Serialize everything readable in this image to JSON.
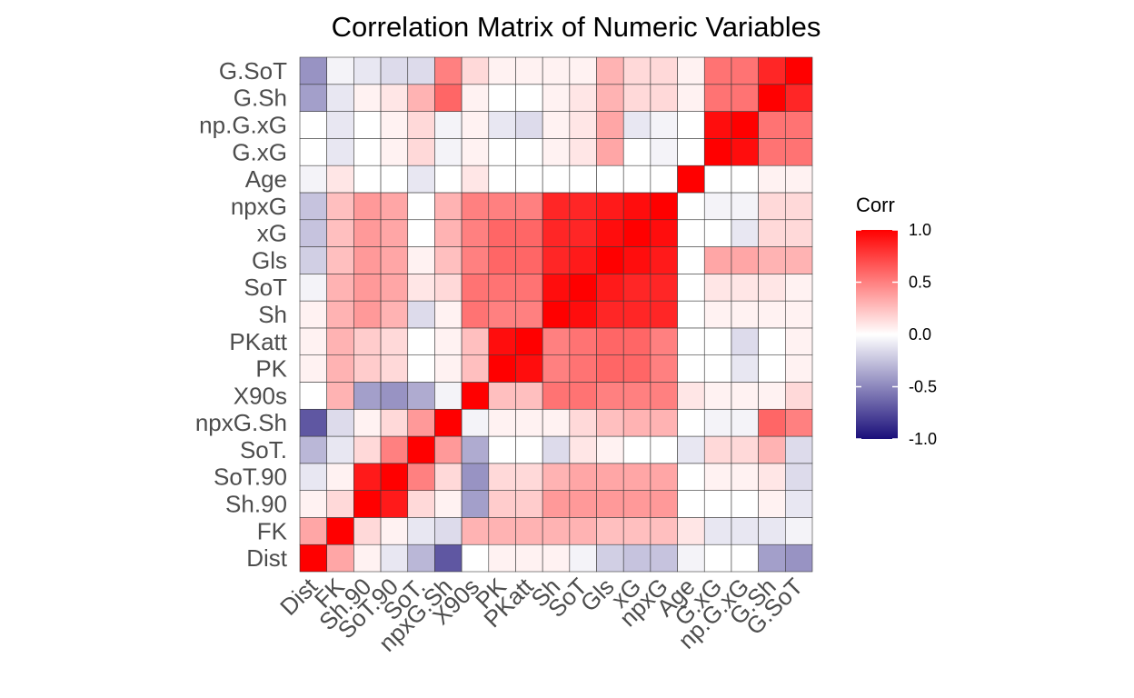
{
  "chart_data": {
    "type": "heatmap",
    "title": "Correlation Matrix of Numeric Variables",
    "variables": [
      "Dist",
      "FK",
      "Sh.90",
      "SoT.90",
      "SoT.",
      "npxG.Sh",
      "X90s",
      "PK",
      "PKatt",
      "Sh",
      "SoT",
      "Gls",
      "xG",
      "npxG",
      "Age",
      "G.xG",
      "np.G.xG",
      "G.Sh",
      "G.SoT"
    ],
    "x_tick_labels": [
      "Dist",
      "FK",
      "Sh.90",
      "SoT.90",
      "SoT.",
      "npxG.Sh",
      "X90s",
      "PK",
      "PKatt",
      "Sh",
      "SoT",
      "Gls",
      "xG",
      "npxG",
      "Age",
      "G.xG",
      "np.G.xG",
      "G.Sh",
      "G.SoT"
    ],
    "y_tick_labels": [
      "Dist",
      "FK",
      "Sh.90",
      "SoT.90",
      "SoT.",
      "npxG.Sh",
      "X90s",
      "PK",
      "PKatt",
      "Sh",
      "SoT",
      "Gls",
      "xG",
      "npxG",
      "Age",
      "G.xG",
      "np.G.xG",
      "G.Sh",
      "G.SoT"
    ],
    "matrix": [
      [
        1.0,
        0.35,
        0.05,
        -0.1,
        -0.3,
        -0.7,
        0.0,
        0.05,
        0.05,
        0.05,
        -0.05,
        -0.2,
        -0.25,
        -0.25,
        -0.05,
        0.0,
        0.0,
        -0.4,
        -0.45
      ],
      [
        0.35,
        1.0,
        0.15,
        0.05,
        -0.1,
        -0.15,
        0.3,
        0.3,
        0.3,
        0.3,
        0.3,
        0.25,
        0.25,
        0.25,
        0.1,
        -0.1,
        -0.1,
        -0.1,
        -0.05
      ],
      [
        0.05,
        0.15,
        1.0,
        0.9,
        0.15,
        0.05,
        -0.4,
        0.2,
        0.2,
        0.4,
        0.4,
        0.4,
        0.4,
        0.4,
        0.0,
        0.0,
        0.0,
        0.05,
        -0.1
      ],
      [
        -0.1,
        0.05,
        0.9,
        1.0,
        0.5,
        0.15,
        -0.45,
        0.15,
        0.15,
        0.3,
        0.35,
        0.35,
        0.35,
        0.35,
        0.0,
        0.05,
        0.05,
        0.1,
        -0.15
      ],
      [
        -0.3,
        -0.1,
        0.15,
        0.5,
        1.0,
        0.4,
        -0.35,
        0.0,
        0.0,
        -0.15,
        0.1,
        0.05,
        0.0,
        0.0,
        -0.1,
        0.15,
        0.15,
        0.3,
        -0.15
      ],
      [
        -0.7,
        -0.15,
        0.05,
        0.15,
        0.4,
        1.0,
        -0.05,
        0.05,
        0.05,
        0.05,
        0.15,
        0.25,
        0.3,
        0.3,
        0.0,
        -0.05,
        -0.05,
        0.6,
        0.5
      ],
      [
        0.0,
        0.3,
        -0.4,
        -0.45,
        -0.35,
        -0.05,
        1.0,
        0.25,
        0.25,
        0.55,
        0.55,
        0.5,
        0.5,
        0.5,
        0.1,
        0.05,
        0.05,
        0.05,
        0.15
      ],
      [
        0.05,
        0.3,
        0.2,
        0.15,
        0.0,
        0.05,
        0.25,
        1.0,
        0.95,
        0.5,
        0.55,
        0.6,
        0.6,
        0.5,
        0.0,
        0.0,
        -0.1,
        0.0,
        0.05
      ],
      [
        0.05,
        0.3,
        0.2,
        0.15,
        0.0,
        0.05,
        0.25,
        0.95,
        1.0,
        0.5,
        0.55,
        0.6,
        0.6,
        0.5,
        0.0,
        0.0,
        -0.15,
        0.0,
        0.05
      ],
      [
        0.05,
        0.3,
        0.4,
        0.3,
        -0.15,
        0.05,
        0.55,
        0.5,
        0.5,
        1.0,
        0.95,
        0.85,
        0.85,
        0.85,
        0.0,
        0.05,
        0.05,
        0.05,
        0.05
      ],
      [
        -0.05,
        0.3,
        0.4,
        0.35,
        0.1,
        0.15,
        0.55,
        0.55,
        0.55,
        0.95,
        1.0,
        0.9,
        0.85,
        0.85,
        0.0,
        0.1,
        0.1,
        0.1,
        0.05
      ],
      [
        -0.2,
        0.25,
        0.4,
        0.35,
        0.05,
        0.25,
        0.5,
        0.6,
        0.6,
        0.85,
        0.9,
        1.0,
        0.95,
        0.9,
        0.0,
        0.35,
        0.35,
        0.3,
        0.3
      ],
      [
        -0.25,
        0.25,
        0.4,
        0.35,
        0.0,
        0.3,
        0.5,
        0.6,
        0.6,
        0.85,
        0.85,
        0.95,
        1.0,
        0.95,
        0.0,
        0.0,
        -0.1,
        0.15,
        0.15
      ],
      [
        -0.25,
        0.25,
        0.4,
        0.35,
        0.0,
        0.3,
        0.5,
        0.5,
        0.5,
        0.85,
        0.85,
        0.9,
        0.95,
        1.0,
        0.0,
        -0.05,
        -0.05,
        0.15,
        0.15
      ],
      [
        -0.05,
        0.1,
        0.0,
        0.0,
        -0.1,
        0.0,
        0.1,
        0.0,
        0.0,
        0.0,
        0.0,
        0.0,
        0.0,
        0.0,
        1.0,
        0.0,
        0.0,
        0.05,
        0.05
      ],
      [
        0.0,
        -0.1,
        0.0,
        0.05,
        0.15,
        -0.05,
        0.05,
        0.0,
        0.0,
        0.05,
        0.1,
        0.35,
        0.0,
        -0.05,
        0.0,
        1.0,
        0.95,
        0.55,
        0.55
      ],
      [
        0.0,
        -0.1,
        0.0,
        0.05,
        0.15,
        -0.05,
        0.05,
        -0.1,
        -0.15,
        0.05,
        0.1,
        0.35,
        -0.1,
        -0.05,
        0.0,
        0.95,
        1.0,
        0.55,
        0.55
      ],
      [
        -0.4,
        -0.1,
        0.05,
        0.1,
        0.3,
        0.6,
        0.05,
        0.0,
        0.0,
        0.05,
        0.1,
        0.3,
        0.15,
        0.15,
        0.05,
        0.55,
        0.55,
        1.0,
        0.85
      ],
      [
        -0.45,
        -0.05,
        -0.1,
        -0.15,
        -0.15,
        0.5,
        0.15,
        0.05,
        0.05,
        0.05,
        0.05,
        0.3,
        0.15,
        0.15,
        0.05,
        0.55,
        0.55,
        0.85,
        1.0
      ]
    ],
    "color_scale": {
      "low": "#1a0f7a",
      "mid": "#ffffff",
      "high": "#ff0000",
      "limits": [
        -1.0,
        1.0
      ]
    },
    "legend": {
      "title": "Corr",
      "placement": "right",
      "ticks": [
        1.0,
        0.5,
        0.0,
        -0.5,
        -1.0
      ],
      "tick_labels": [
        "1.0",
        "0.5",
        "0.0",
        "-0.5",
        "-1.0"
      ]
    },
    "grid": true
  }
}
